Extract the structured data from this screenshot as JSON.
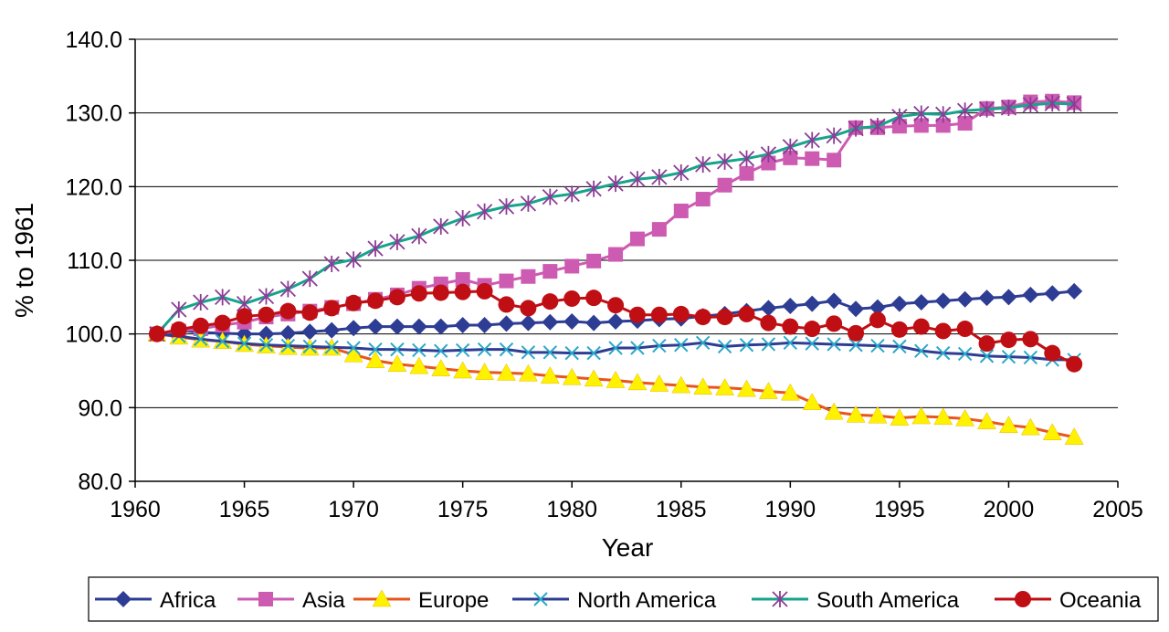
{
  "chart_data": {
    "type": "line",
    "title": "",
    "xlabel": "Year",
    "ylabel": "% to 1961",
    "xlim": [
      1960,
      2005
    ],
    "ylim": [
      80,
      140
    ],
    "xticks": [
      1960,
      1965,
      1970,
      1975,
      1980,
      1985,
      1990,
      1995,
      2000,
      2005
    ],
    "xtick_labels": [
      "1960",
      "1965",
      "1970",
      "1975",
      "1980",
      "1985",
      "1990",
      "1995",
      "2000",
      "2005"
    ],
    "yticks": [
      80,
      90,
      100,
      110,
      120,
      130,
      140
    ],
    "ytick_labels": [
      "80.0",
      "90.0",
      "100.0",
      "110.0",
      "120.0",
      "130.0",
      "140.0"
    ],
    "grid": "horizontal",
    "legend_position": "bottom",
    "x": [
      1961,
      1962,
      1963,
      1964,
      1965,
      1966,
      1967,
      1968,
      1969,
      1970,
      1971,
      1972,
      1973,
      1974,
      1975,
      1976,
      1977,
      1978,
      1979,
      1980,
      1981,
      1982,
      1983,
      1984,
      1985,
      1986,
      1987,
      1988,
      1989,
      1990,
      1991,
      1992,
      1993,
      1994,
      1995,
      1996,
      1997,
      1998,
      1999,
      2000,
      2001,
      2002,
      2003
    ],
    "series": [
      {
        "name": "Africa",
        "color": "#2E3D94",
        "marker": "diamond",
        "values": [
          100.0,
          100.5,
          100.2,
          100.1,
          100.0,
          100.0,
          100.1,
          100.3,
          100.5,
          100.8,
          101.0,
          101.0,
          101.0,
          101.0,
          101.2,
          101.2,
          101.4,
          101.5,
          101.6,
          101.7,
          101.5,
          101.7,
          101.8,
          102.0,
          102.1,
          102.4,
          102.7,
          103.1,
          103.5,
          103.8,
          104.1,
          104.5,
          103.4,
          103.6,
          104.1,
          104.3,
          104.5,
          104.7,
          104.9,
          105.0,
          105.3,
          105.5,
          105.8
        ]
      },
      {
        "name": "Asia",
        "color": "#CC5BB1",
        "marker": "square",
        "values": [
          100.0,
          100.4,
          100.7,
          101.2,
          101.6,
          102.3,
          102.7,
          103.1,
          103.6,
          104.1,
          104.7,
          105.3,
          106.2,
          106.8,
          107.4,
          106.6,
          107.2,
          107.8,
          108.5,
          109.2,
          109.9,
          110.8,
          112.9,
          114.2,
          116.7,
          118.3,
          120.2,
          121.8,
          123.2,
          123.9,
          123.8,
          123.6,
          128.0,
          128.0,
          128.2,
          128.3,
          128.3,
          128.6,
          130.6,
          130.8,
          131.5,
          131.6,
          131.4
        ]
      },
      {
        "name": "Europe",
        "color": "#E8561C",
        "marker": "triangle",
        "values": [
          100.0,
          99.6,
          99.2,
          99.0,
          98.6,
          98.4,
          98.2,
          98.1,
          98.1,
          97.2,
          96.4,
          95.9,
          95.6,
          95.3,
          95.0,
          94.8,
          94.7,
          94.6,
          94.3,
          94.1,
          93.9,
          93.7,
          93.4,
          93.2,
          93.0,
          92.8,
          92.7,
          92.5,
          92.2,
          92.0,
          90.7,
          89.4,
          89.0,
          88.9,
          88.6,
          88.8,
          88.7,
          88.5,
          88.1,
          87.6,
          87.3,
          86.6,
          86.0
        ]
      },
      {
        "name": "North America",
        "color": "#2BA8C9",
        "line_color": "#2E3D94",
        "marker": "x",
        "values": [
          100.0,
          99.7,
          99.3,
          99.0,
          98.7,
          98.5,
          98.4,
          98.3,
          98.2,
          98.1,
          97.9,
          97.9,
          97.8,
          97.7,
          97.8,
          97.9,
          97.9,
          97.5,
          97.5,
          97.4,
          97.4,
          98.1,
          98.1,
          98.4,
          98.5,
          98.8,
          98.3,
          98.5,
          98.6,
          98.8,
          98.7,
          98.6,
          98.5,
          98.4,
          98.3,
          97.7,
          97.4,
          97.3,
          97.0,
          96.9,
          96.8,
          96.5,
          96.5
        ]
      },
      {
        "name": "South America",
        "color": "#8C3B96",
        "line_color": "#17A38C",
        "marker": "asterisk",
        "values": [
          100.0,
          103.3,
          104.3,
          105.0,
          104.1,
          105.1,
          106.1,
          107.5,
          109.5,
          110.1,
          111.6,
          112.5,
          113.3,
          114.6,
          115.7,
          116.6,
          117.3,
          117.7,
          118.6,
          119.0,
          119.7,
          120.4,
          121.0,
          121.3,
          121.9,
          123.0,
          123.4,
          123.8,
          124.4,
          125.4,
          126.3,
          126.9,
          127.9,
          128.2,
          129.5,
          129.9,
          129.8,
          130.3,
          130.5,
          130.7,
          131.1,
          131.3,
          131.2
        ]
      },
      {
        "name": "Oceania",
        "color": "#C00F14",
        "marker": "circle",
        "values": [
          100.0,
          100.6,
          101.1,
          101.5,
          102.4,
          102.6,
          103.1,
          102.9,
          103.5,
          104.2,
          104.5,
          105.0,
          105.5,
          105.6,
          105.7,
          105.8,
          104.0,
          103.5,
          104.4,
          104.8,
          104.9,
          103.9,
          102.6,
          102.6,
          102.7,
          102.3,
          102.3,
          102.7,
          101.5,
          101.0,
          100.7,
          101.4,
          100.1,
          101.9,
          100.6,
          101.0,
          100.4,
          100.7,
          98.7,
          99.2,
          99.3,
          97.4,
          95.9
        ]
      }
    ]
  }
}
